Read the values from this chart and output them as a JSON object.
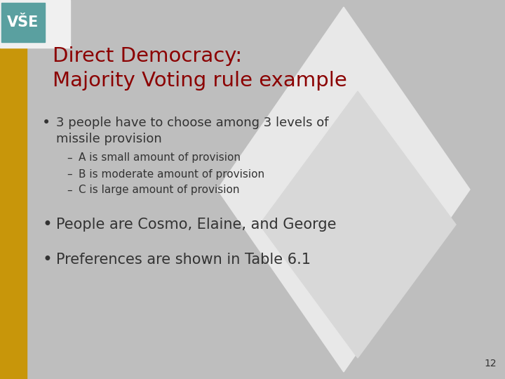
{
  "title_line1": "Direct Democracy:",
  "title_line2": "Majority Voting rule example",
  "title_color": "#8B0000",
  "bullet1_line1": "3 people have to choose among 3 levels of",
  "bullet1_line2": "missile provision",
  "sub_bullets": [
    "A is small amount of provision",
    "B is moderate amount of provision",
    "C is large amount of provision"
  ],
  "bullet2": "People are Cosmo, Elaine, and George",
  "bullet3": "Preferences are shown in Table 6.1",
  "bg_color": "#BEBEBE",
  "diamond_color": "#D8D8D8",
  "diamond2_color": "#E8E8E8",
  "left_bar_color": "#C8960A",
  "logo_bg_color": "#5AA0A0",
  "logo_white_bg": "#F0F0F0",
  "slide_number": "12",
  "body_text_color": "#333333",
  "sub_bullet_text_color": "#333333",
  "title_fontsize": 21,
  "bullet_fontsize": 13,
  "sub_bullet_fontsize": 11,
  "bullet2_fontsize": 15,
  "slide_num_fontsize": 10
}
